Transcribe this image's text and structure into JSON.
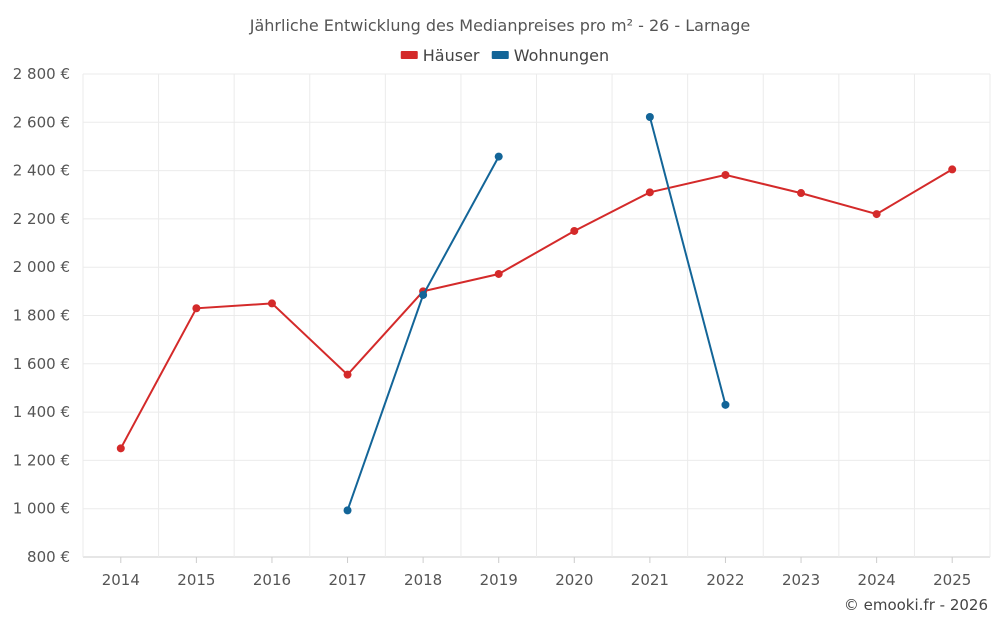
{
  "chart_data": {
    "type": "line",
    "title": "Jährliche Entwicklung des Medianpreises pro m² - 26 - Larnage",
    "xlabel": "",
    "ylabel": "",
    "categories": [
      "2014",
      "2015",
      "2016",
      "2017",
      "2018",
      "2019",
      "2020",
      "2021",
      "2022",
      "2023",
      "2024",
      "2025"
    ],
    "ylim": [
      800,
      2800
    ],
    "yticks": [
      800,
      1000,
      1200,
      1400,
      1600,
      1800,
      2000,
      2200,
      2400,
      2600,
      2800
    ],
    "ytick_labels": [
      "800 €",
      "1 000 €",
      "1 200 €",
      "1 400 €",
      "1 600 €",
      "1 800 €",
      "2 000 €",
      "2 200 €",
      "2 400 €",
      "2 600 €",
      "2 800 €"
    ],
    "legend_position": "top-center",
    "grid": true,
    "series": [
      {
        "name": "Häuser",
        "color": "#d42a2a",
        "values": [
          1250,
          1830,
          1850,
          1555,
          1900,
          1972,
          2150,
          2310,
          2382,
          2307,
          2220,
          2405
        ]
      },
      {
        "name": "Wohnungen",
        "color": "#136598",
        "values": [
          null,
          null,
          null,
          993,
          1885,
          2458,
          null,
          2622,
          1430,
          null,
          null,
          null
        ]
      }
    ]
  },
  "credit": "© emooki.fr - 2026"
}
